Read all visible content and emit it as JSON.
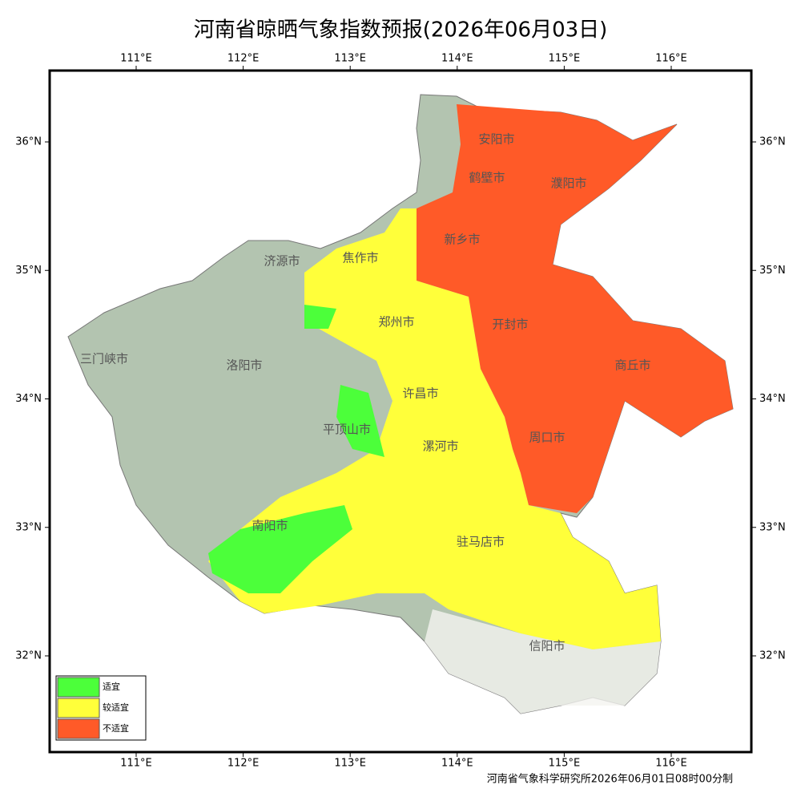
{
  "header": {
    "title": "河南省晾晒气象指数预报(2026年06月03日)"
  },
  "map": {
    "lon_ticks": [
      {
        "value": 111,
        "label": "111°E"
      },
      {
        "value": 112,
        "label": "112°E"
      },
      {
        "value": 113,
        "label": "113°E"
      },
      {
        "value": 114,
        "label": "114°E"
      },
      {
        "value": 115,
        "label": "115°E"
      },
      {
        "value": 116,
        "label": "116°E"
      }
    ],
    "lat_ticks": [
      {
        "value": 36,
        "label": "36°N"
      },
      {
        "value": 35,
        "label": "35°N"
      },
      {
        "value": 34,
        "label": "34°N"
      },
      {
        "value": 33,
        "label": "33°N"
      },
      {
        "value": 32,
        "label": "32°N"
      }
    ],
    "cities": [
      "安阳市",
      "鹤壁市",
      "濮阳市",
      "新乡市",
      "济源市",
      "焦作市",
      "郑州市",
      "开封市",
      "三门峡市",
      "洛阳市",
      "商丘市",
      "许昌市",
      "平顶山市",
      "漯河市",
      "周口市",
      "南阳市",
      "驻马店市",
      "信阳市"
    ]
  },
  "legend": [
    {
      "label": "适宜",
      "color": "#4cff3a"
    },
    {
      "label": "较适宜",
      "color": "#ffff3a"
    },
    {
      "label": "不适宜",
      "color": "#ff5a28"
    }
  ],
  "footer": {
    "credit": "河南省气象科学研究所2026年06月01日08时00分制"
  }
}
